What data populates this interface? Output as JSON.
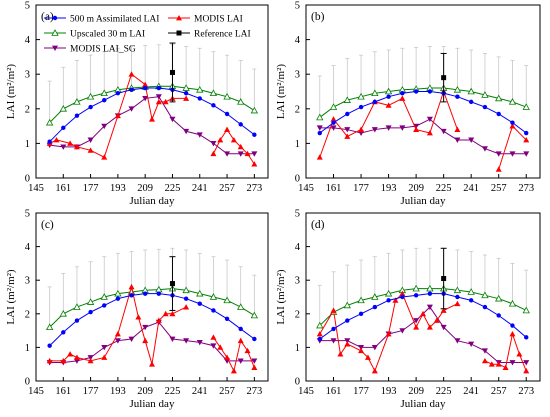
{
  "chart_data": [
    {
      "type": "line",
      "panel_label": "(a)",
      "xlabel": "Julian day",
      "ylabel": "LAI (m²/m²)",
      "xlim": [
        145,
        281
      ],
      "ylim": [
        0,
        5
      ],
      "x_ticks": [
        145,
        161,
        177,
        193,
        209,
        225,
        241,
        257,
        273
      ],
      "y_ticks": [
        0,
        1,
        2,
        3,
        4,
        5
      ],
      "legend": {
        "placement": "top",
        "entries": [
          "500 m Assimilated LAI",
          "MODIS LAI",
          "Upscaled 30 m LAI",
          "Reference LAI",
          "MODIS LAI_SG"
        ]
      },
      "series": [
        {
          "name": "500 m Assimilated LAI",
          "color": "#0000ff",
          "marker": "circle",
          "x": [
            153,
            161,
            169,
            177,
            185,
            193,
            201,
            209,
            217,
            225,
            233,
            241,
            249,
            257,
            265,
            273
          ],
          "y": [
            1.05,
            1.45,
            1.8,
            2.05,
            2.25,
            2.45,
            2.55,
            2.6,
            2.6,
            2.55,
            2.45,
            2.3,
            2.1,
            1.85,
            1.55,
            1.25
          ]
        },
        {
          "name": "Upscaled 30 m LAI",
          "color": "#008000",
          "marker": "open-triangle",
          "x": [
            153,
            161,
            169,
            177,
            185,
            193,
            201,
            209,
            217,
            225,
            233,
            241,
            249,
            257,
            265,
            273
          ],
          "y": [
            1.6,
            2.0,
            2.2,
            2.35,
            2.45,
            2.55,
            2.6,
            2.63,
            2.65,
            2.65,
            2.6,
            2.55,
            2.45,
            2.35,
            2.2,
            1.95
          ],
          "error_bar": [
            1.2,
            1.2,
            1.2,
            1.2,
            1.2,
            1.2,
            1.2,
            1.2,
            1.2,
            1.2,
            1.2,
            1.2,
            1.2,
            1.2,
            1.2,
            1.2
          ]
        },
        {
          "name": "MODIS LAI",
          "color": "#ff0000",
          "marker": "triangle",
          "x": [
            153,
            157,
            165,
            169,
            177,
            185,
            193,
            201,
            209,
            213,
            217,
            221,
            225,
            233
          ],
          "y": [
            1.0,
            1.1,
            1.0,
            0.9,
            0.8,
            0.6,
            1.8,
            3.0,
            2.7,
            1.7,
            2.2,
            2.2,
            2.3,
            2.3
          ]
        },
        {
          "name": "MODIS LAI",
          "color": "#ff0000",
          "marker": "triangle",
          "x": [
            249,
            253,
            257,
            261,
            265,
            269,
            273
          ],
          "y": [
            0.7,
            1.1,
            1.4,
            1.1,
            0.9,
            0.7,
            0.4
          ]
        },
        {
          "name": "MODIS LAI_SG",
          "color": "#800080",
          "marker": "down-triangle",
          "x": [
            153,
            161,
            169,
            177,
            185,
            193,
            201,
            209,
            217,
            225,
            233,
            241,
            249,
            257,
            265,
            273
          ],
          "y": [
            0.95,
            0.9,
            0.9,
            1.1,
            1.5,
            1.8,
            2.0,
            2.3,
            2.35,
            1.7,
            1.35,
            1.25,
            1.0,
            0.7,
            0.7,
            0.7
          ]
        },
        {
          "name": "Reference LAI",
          "color": "#000000",
          "marker": "square",
          "x": [
            225
          ],
          "y": [
            3.05
          ],
          "error": [
            0.85
          ]
        }
      ]
    },
    {
      "type": "line",
      "panel_label": "(b)",
      "xlabel": "Julian day",
      "ylabel": "LAI (m²/m²)",
      "xlim": [
        145,
        281
      ],
      "ylim": [
        0,
        5
      ],
      "x_ticks": [
        145,
        161,
        177,
        193,
        209,
        225,
        241,
        257,
        273
      ],
      "y_ticks": [
        0,
        1,
        2,
        3,
        4,
        5
      ],
      "series": [
        {
          "name": "500 m Assimilated LAI",
          "color": "#0000ff",
          "marker": "circle",
          "x": [
            153,
            161,
            169,
            177,
            185,
            193,
            201,
            209,
            217,
            225,
            233,
            241,
            249,
            257,
            265,
            273
          ],
          "y": [
            1.3,
            1.6,
            1.85,
            2.05,
            2.2,
            2.35,
            2.45,
            2.5,
            2.5,
            2.45,
            2.35,
            2.2,
            2.05,
            1.85,
            1.6,
            1.3
          ]
        },
        {
          "name": "Upscaled 30 m LAI",
          "color": "#008000",
          "marker": "open-triangle",
          "x": [
            153,
            161,
            169,
            177,
            185,
            193,
            201,
            209,
            217,
            225,
            233,
            241,
            249,
            257,
            265,
            273
          ],
          "y": [
            1.75,
            2.05,
            2.25,
            2.35,
            2.45,
            2.5,
            2.55,
            2.57,
            2.6,
            2.6,
            2.55,
            2.5,
            2.4,
            2.3,
            2.2,
            2.05
          ],
          "error_bar": [
            1.2,
            1.2,
            1.2,
            1.2,
            1.2,
            1.2,
            1.2,
            1.2,
            1.2,
            1.2,
            1.2,
            1.2,
            1.2,
            1.2,
            1.2,
            1.2
          ]
        },
        {
          "name": "MODIS LAI",
          "color": "#ff0000",
          "marker": "triangle",
          "x": [
            153,
            161,
            169,
            177,
            185,
            193,
            201,
            209,
            217,
            225,
            233
          ],
          "y": [
            0.6,
            1.7,
            1.2,
            1.4,
            2.2,
            2.1,
            2.3,
            1.4,
            1.3,
            2.5,
            1.4
          ]
        },
        {
          "name": "MODIS LAI",
          "color": "#ff0000",
          "marker": "triangle",
          "x": [
            257,
            265,
            273
          ],
          "y": [
            0.25,
            1.5,
            1.1
          ]
        },
        {
          "name": "MODIS LAI_SG",
          "color": "#800080",
          "marker": "down-triangle",
          "x": [
            153,
            161,
            169,
            177,
            185,
            193,
            201,
            209,
            217,
            225,
            233,
            241,
            249,
            257,
            265,
            273
          ],
          "y": [
            1.45,
            1.45,
            1.4,
            1.3,
            1.4,
            1.45,
            1.45,
            1.5,
            1.7,
            1.35,
            1.1,
            1.1,
            0.85,
            0.7,
            0.7,
            0.7
          ]
        },
        {
          "name": "Reference LAI",
          "color": "#000000",
          "marker": "square",
          "x": [
            225
          ],
          "y": [
            2.9
          ],
          "error": [
            0.7
          ]
        }
      ]
    },
    {
      "type": "line",
      "panel_label": "(c)",
      "xlabel": "Julian day",
      "ylabel": "LAI (m²/m²)",
      "xlim": [
        145,
        281
      ],
      "ylim": [
        0,
        5
      ],
      "x_ticks": [
        145,
        161,
        177,
        193,
        209,
        225,
        241,
        257,
        273
      ],
      "y_ticks": [
        0,
        1,
        2,
        3,
        4,
        5
      ],
      "series": [
        {
          "name": "500 m Assimilated LAI",
          "color": "#0000ff",
          "marker": "circle",
          "x": [
            153,
            161,
            169,
            177,
            185,
            193,
            201,
            209,
            217,
            225,
            233,
            241,
            249,
            257,
            265,
            273
          ],
          "y": [
            1.05,
            1.45,
            1.8,
            2.05,
            2.25,
            2.45,
            2.55,
            2.6,
            2.6,
            2.55,
            2.45,
            2.3,
            2.1,
            1.85,
            1.55,
            1.25
          ]
        },
        {
          "name": "Upscaled 30 m LAI",
          "color": "#008000",
          "marker": "open-triangle",
          "x": [
            153,
            161,
            169,
            177,
            185,
            193,
            201,
            209,
            217,
            225,
            233,
            241,
            249,
            257,
            265,
            273
          ],
          "y": [
            1.6,
            2.0,
            2.2,
            2.35,
            2.5,
            2.6,
            2.65,
            2.7,
            2.72,
            2.75,
            2.7,
            2.6,
            2.5,
            2.4,
            2.2,
            1.95
          ],
          "error_bar": [
            1.2,
            1.2,
            1.2,
            1.2,
            1.2,
            1.2,
            1.2,
            1.2,
            1.2,
            1.2,
            1.2,
            1.2,
            1.2,
            1.2,
            1.2,
            1.2
          ]
        },
        {
          "name": "MODIS LAI",
          "color": "#ff0000",
          "marker": "triangle",
          "x": [
            153,
            161,
            165,
            169,
            177,
            185,
            193,
            201,
            205,
            209,
            213,
            217,
            221,
            225,
            233
          ],
          "y": [
            0.6,
            0.6,
            0.8,
            0.7,
            0.6,
            0.7,
            1.4,
            2.8,
            1.9,
            1.2,
            0.5,
            1.8,
            2.0,
            2.0,
            2.2
          ]
        },
        {
          "name": "MODIS LAI",
          "color": "#ff0000",
          "marker": "triangle",
          "x": [
            249,
            253,
            257,
            261,
            265,
            269,
            273
          ],
          "y": [
            1.3,
            1.0,
            0.7,
            0.3,
            1.2,
            0.9,
            0.4
          ]
        },
        {
          "name": "MODIS LAI_SG",
          "color": "#800080",
          "marker": "down-triangle",
          "x": [
            153,
            161,
            169,
            177,
            185,
            193,
            201,
            209,
            217,
            225,
            233,
            241,
            249,
            257,
            265,
            273
          ],
          "y": [
            0.55,
            0.55,
            0.6,
            0.7,
            1.0,
            1.2,
            1.25,
            1.6,
            1.75,
            1.25,
            1.2,
            1.15,
            1.05,
            0.6,
            0.6,
            0.6
          ]
        },
        {
          "name": "Reference LAI",
          "color": "#000000",
          "marker": "square",
          "x": [
            225
          ],
          "y": [
            2.9
          ],
          "error": [
            0.8
          ]
        }
      ]
    },
    {
      "type": "line",
      "panel_label": "(d)",
      "xlabel": "Julian day",
      "ylabel": "LAI (m²/m²)",
      "xlim": [
        145,
        281
      ],
      "ylim": [
        0,
        5
      ],
      "x_ticks": [
        145,
        161,
        177,
        193,
        209,
        225,
        241,
        257,
        273
      ],
      "y_ticks": [
        0,
        1,
        2,
        3,
        4,
        5
      ],
      "series": [
        {
          "name": "500 m Assimilated LAI",
          "color": "#0000ff",
          "marker": "circle",
          "x": [
            153,
            161,
            169,
            177,
            185,
            193,
            201,
            209,
            217,
            225,
            233,
            241,
            249,
            257,
            265,
            273
          ],
          "y": [
            1.25,
            1.55,
            1.8,
            2.0,
            2.2,
            2.4,
            2.5,
            2.55,
            2.6,
            2.6,
            2.5,
            2.4,
            2.2,
            1.95,
            1.65,
            1.3
          ]
        },
        {
          "name": "Upscaled 30 m LAI",
          "color": "#008000",
          "marker": "open-triangle",
          "x": [
            153,
            161,
            169,
            177,
            185,
            193,
            201,
            209,
            217,
            225,
            233,
            241,
            249,
            257,
            265,
            273
          ],
          "y": [
            1.65,
            2.05,
            2.25,
            2.4,
            2.5,
            2.6,
            2.7,
            2.75,
            2.75,
            2.75,
            2.7,
            2.65,
            2.55,
            2.45,
            2.3,
            2.1
          ],
          "error_bar": [
            1.2,
            1.2,
            1.2,
            1.2,
            1.2,
            1.2,
            1.2,
            1.2,
            1.2,
            1.2,
            1.2,
            1.2,
            1.2,
            1.2,
            1.2,
            1.2
          ]
        },
        {
          "name": "MODIS LAI",
          "color": "#ff0000",
          "marker": "triangle",
          "x": [
            153,
            161,
            165,
            169,
            177,
            181,
            185,
            193,
            197,
            201,
            209,
            213,
            217,
            221,
            225,
            233
          ],
          "y": [
            1.4,
            2.1,
            0.8,
            1.1,
            0.9,
            0.7,
            0.3,
            1.4,
            2.4,
            2.6,
            1.6,
            2.0,
            1.6,
            1.8,
            2.1,
            2.3
          ]
        },
        {
          "name": "MODIS LAI",
          "color": "#ff0000",
          "marker": "triangle",
          "x": [
            249,
            253,
            257,
            261,
            265,
            269,
            273
          ],
          "y": [
            0.6,
            0.5,
            0.5,
            0.4,
            1.4,
            0.8,
            0.3
          ]
        },
        {
          "name": "MODIS LAI_SG",
          "color": "#800080",
          "marker": "down-triangle",
          "x": [
            153,
            161,
            169,
            177,
            185,
            193,
            201,
            209,
            217,
            225,
            233,
            241,
            249,
            257,
            265,
            273
          ],
          "y": [
            1.2,
            1.2,
            1.2,
            1.0,
            1.0,
            1.4,
            1.5,
            1.8,
            2.2,
            1.6,
            1.2,
            1.1,
            0.9,
            0.55,
            0.55,
            0.55
          ]
        },
        {
          "name": "Reference LAI",
          "color": "#000000",
          "marker": "square",
          "x": [
            225
          ],
          "y": [
            3.05
          ],
          "error": [
            0.9
          ]
        }
      ]
    }
  ]
}
